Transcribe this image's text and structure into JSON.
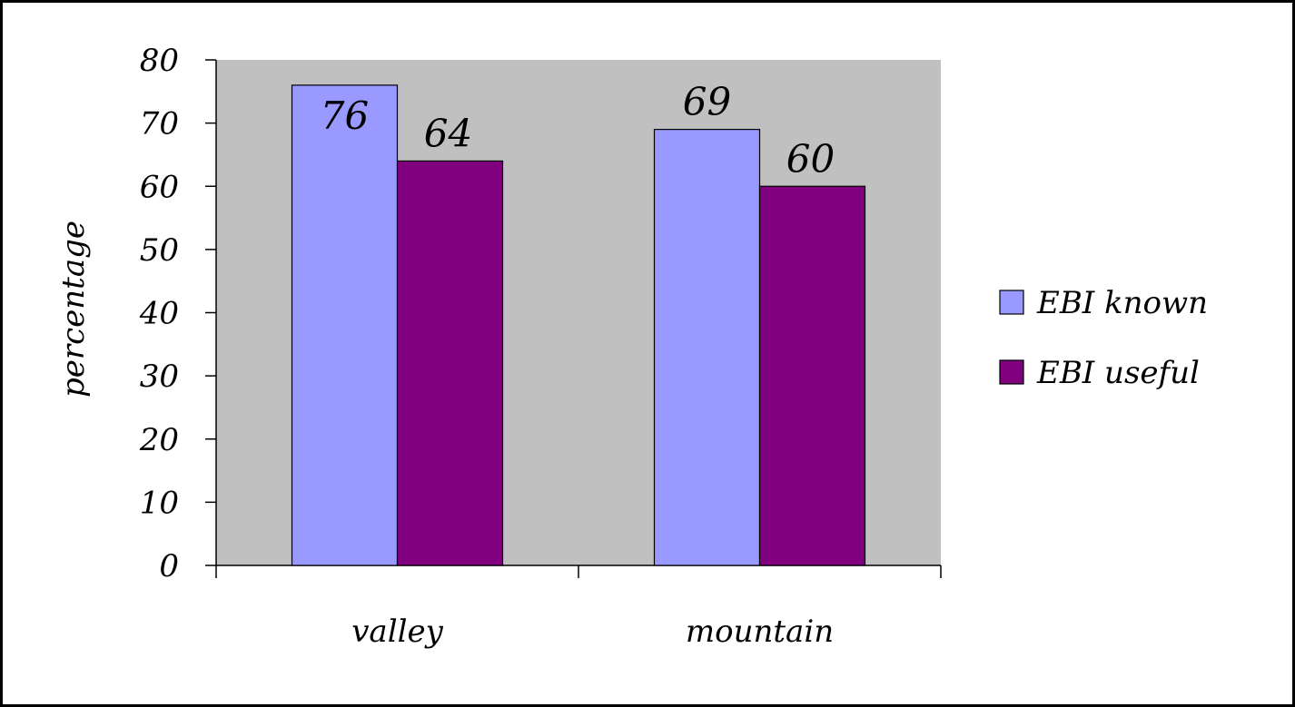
{
  "colors": {
    "plot_background": "#c0c0c0",
    "series_known": "#9999ff",
    "series_useful": "#800080",
    "frame": "#000000"
  },
  "chart_data": {
    "type": "bar",
    "title": "",
    "xlabel": "",
    "ylabel": "percentage",
    "categories": [
      "valley",
      "mountain"
    ],
    "series": [
      {
        "name": "EBI known",
        "values": [
          76,
          69
        ]
      },
      {
        "name": "EBI useful",
        "values": [
          64,
          60
        ]
      }
    ],
    "ylim": [
      0,
      80
    ],
    "yticks": [
      0,
      10,
      20,
      30,
      40,
      50,
      60,
      70,
      80
    ],
    "data_labels": true,
    "grid": false,
    "legend": "right"
  }
}
